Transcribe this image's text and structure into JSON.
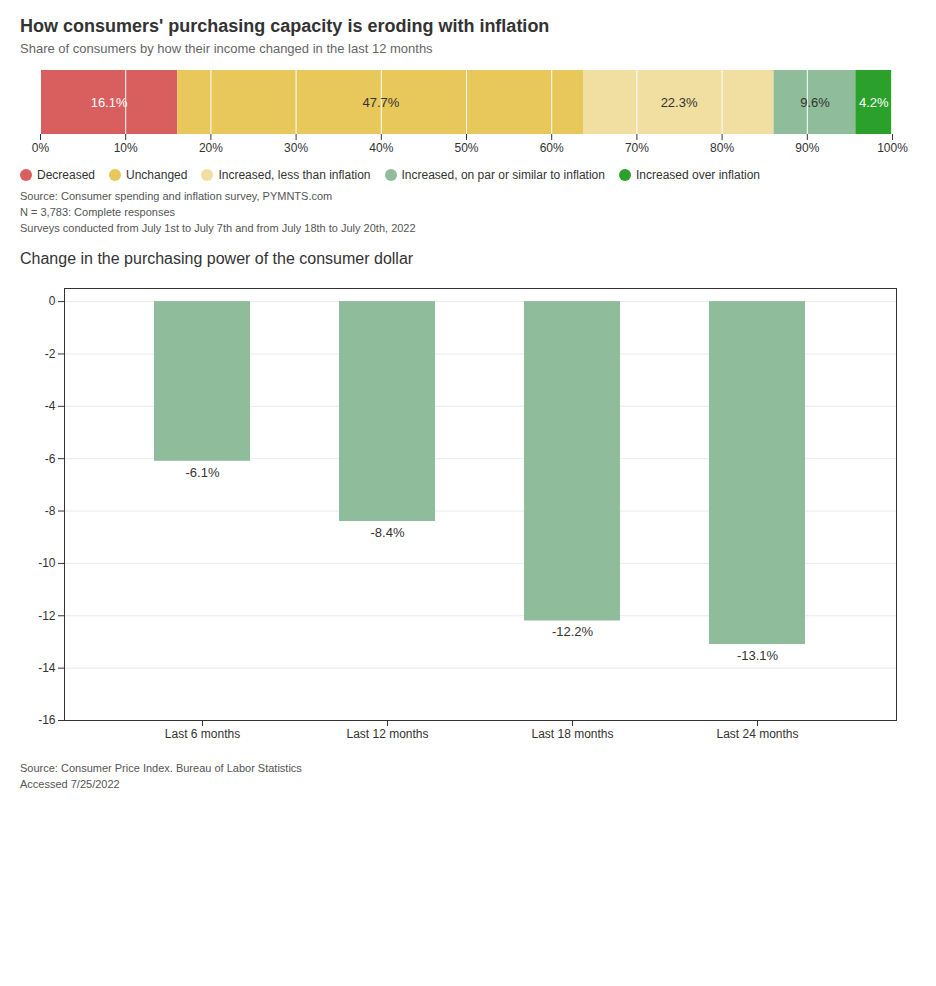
{
  "chart_data": [
    {
      "type": "bar",
      "orientation": "horizontal",
      "stacked": true,
      "title": "How consumers' purchasing capacity is eroding with inflation",
      "subtitle": "Share of consumers by how their income changed in the last 12 months",
      "series": [
        {
          "name": "Decreased",
          "color": "#d95f5f",
          "values": [
            16.1
          ],
          "value_labels": [
            "16.1%"
          ]
        },
        {
          "name": "Unchanged",
          "color": "#e8c85a",
          "values": [
            47.7
          ],
          "value_labels": [
            "47.7%"
          ]
        },
        {
          "name": "Increased, less than inflation",
          "color": "#f0dfa0",
          "values": [
            22.3
          ],
          "value_labels": [
            "22.3%"
          ]
        },
        {
          "name": "Increased, on par or similar to inflation",
          "color": "#8fbc9a",
          "values": [
            9.6
          ],
          "value_labels": [
            "9.6%"
          ]
        },
        {
          "name": "Increased over inflation",
          "color": "#2ba02b",
          "values": [
            4.2
          ],
          "value_labels": [
            "4.2%"
          ]
        }
      ],
      "xlim": [
        0,
        100
      ],
      "xticks": [
        {
          "value": 0,
          "label": "0%"
        },
        {
          "value": 10,
          "label": "10%"
        },
        {
          "value": 20,
          "label": "20%"
        },
        {
          "value": 30,
          "label": "30%"
        },
        {
          "value": 40,
          "label": "40%"
        },
        {
          "value": 50,
          "label": "50%"
        },
        {
          "value": 60,
          "label": "60%"
        },
        {
          "value": 70,
          "label": "70%"
        },
        {
          "value": 80,
          "label": "80%"
        },
        {
          "value": 90,
          "label": "90%"
        },
        {
          "value": 100,
          "label": "100%"
        }
      ],
      "grid": true,
      "legend": "bottom",
      "data_labels": true,
      "tick_labels": "x",
      "annotations": [
        "Source: Consumer spending and inflation survey, PYMNTS.com",
        "N = 3,783: Complete responses",
        "Surveys conducted from July 1st to July 7th and from July 18th to July 20th, 2022"
      ]
    },
    {
      "type": "bar",
      "title": "Change in the purchasing power of the consumer dollar",
      "categories": [
        "Last 6 months",
        "Last 12 months",
        "Last 18 months",
        "Last 24 months"
      ],
      "values": [
        -6.1,
        -8.4,
        -12.2,
        -13.1
      ],
      "value_labels": [
        "-6.1%",
        "-8.4%",
        "-12.2%",
        "-13.1%"
      ],
      "color": "#8fbc9a",
      "ylim": [
        -16,
        0.5
      ],
      "yticks": [
        0,
        -2,
        -4,
        -6,
        -8,
        -10,
        -12,
        -14,
        -16
      ],
      "grid": true,
      "data_labels": true,
      "annotations": [
        "Source: Consumer Price Index. Bureau of Labor Statistics",
        "Accessed 7/25/2022"
      ]
    }
  ]
}
